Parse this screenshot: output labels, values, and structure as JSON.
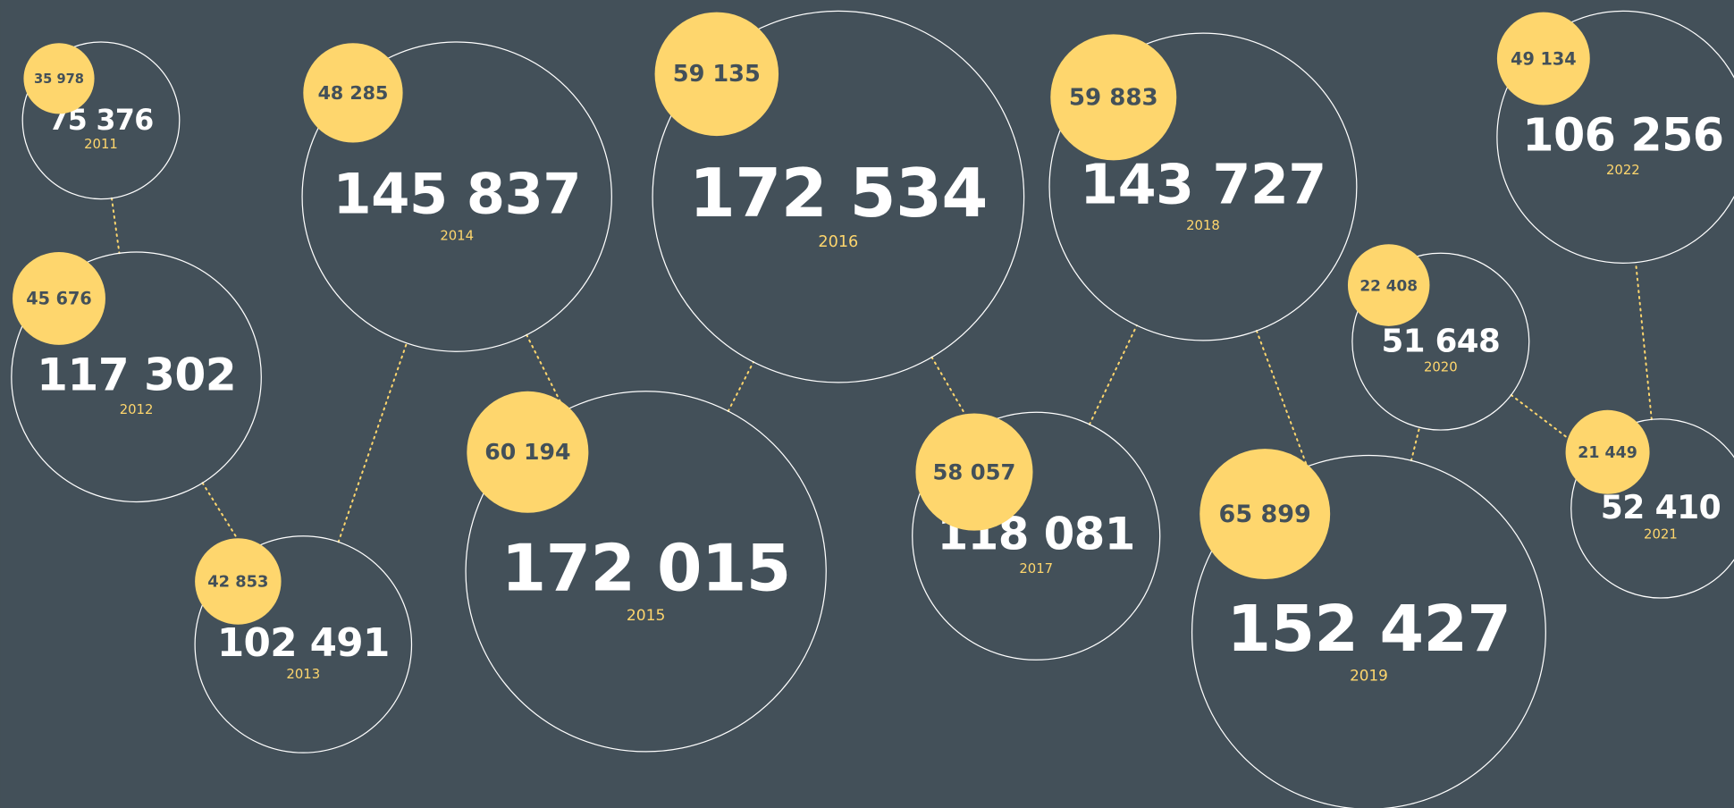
{
  "items": [
    {
      "total": "75 376",
      "year": "2011",
      "sub": "35 978"
    },
    {
      "total": "117 302",
      "year": "2012",
      "sub": "45 676"
    },
    {
      "total": "102 491",
      "year": "2013",
      "sub": "42 853"
    },
    {
      "total": "145 837",
      "year": "2014",
      "sub": "48 285"
    },
    {
      "total": "172 015",
      "year": "2015",
      "sub": "60 194"
    },
    {
      "total": "172 534",
      "year": "2016",
      "sub": "59 135"
    },
    {
      "total": "118 081",
      "year": "2017",
      "sub": "58 057"
    },
    {
      "total": "143 727",
      "year": "2018",
      "sub": "59 883"
    },
    {
      "total": "152 427",
      "year": "2019",
      "sub": "65 899"
    },
    {
      "total": "51 648",
      "year": "2020",
      "sub": "22 408"
    },
    {
      "total": "52 410",
      "year": "2021",
      "sub": "21 449"
    },
    {
      "total": "106 256",
      "year": "2022",
      "sub": "49 134"
    }
  ]
}
